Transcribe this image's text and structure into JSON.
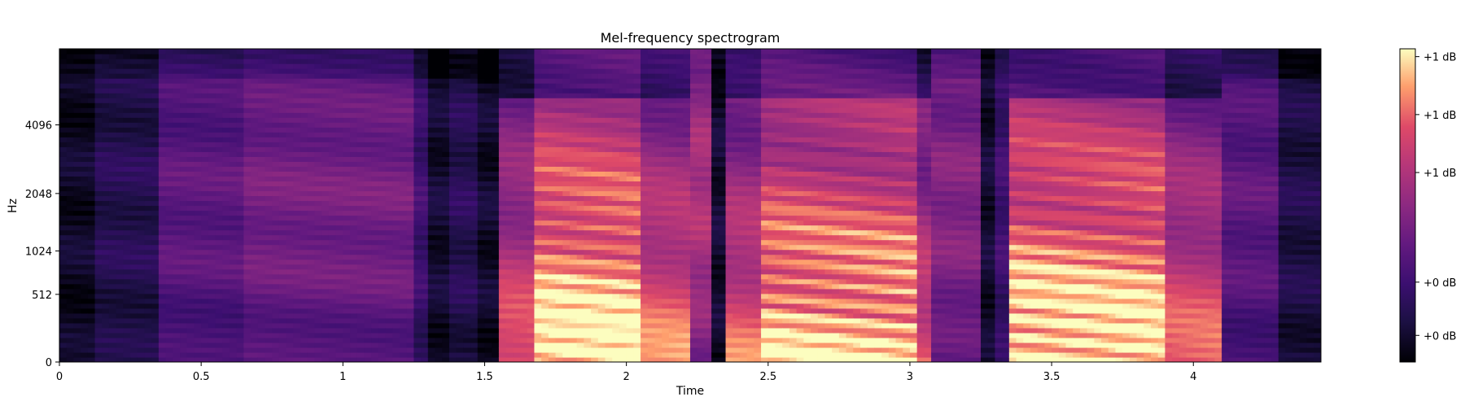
{
  "chart_data": {
    "type": "heatmap",
    "title": "Mel-frequency spectrogram",
    "xlabel": "Time",
    "ylabel": "Hz",
    "xlim": [
      0,
      4.45
    ],
    "y_scale": "mel",
    "x_ticks": [
      {
        "value": 0,
        "label": "0"
      },
      {
        "value": 0.5,
        "label": "0.5"
      },
      {
        "value": 1,
        "label": "1"
      },
      {
        "value": 1.5,
        "label": "1.5"
      },
      {
        "value": 2,
        "label": "2"
      },
      {
        "value": 2.5,
        "label": "2.5"
      },
      {
        "value": 3,
        "label": "3"
      },
      {
        "value": 3.5,
        "label": "3.5"
      },
      {
        "value": 4,
        "label": "4"
      }
    ],
    "y_ticks": [
      {
        "value": 0,
        "label": "0"
      },
      {
        "value": 512,
        "label": "512"
      },
      {
        "value": 1024,
        "label": "1024"
      },
      {
        "value": 2048,
        "label": "2048"
      },
      {
        "value": 4096,
        "label": "4096"
      }
    ],
    "colorbar": {
      "colormap": "magma",
      "ticks": [
        "+1 dB",
        "+1 dB",
        "+1 dB",
        "+0 dB",
        "+0 dB"
      ]
    },
    "segments": [
      {
        "start": 0.0,
        "end": 0.12,
        "level": 0.06
      },
      {
        "start": 0.12,
        "end": 0.35,
        "level": 0.14
      },
      {
        "start": 0.35,
        "end": 0.65,
        "level": 0.3
      },
      {
        "start": 0.65,
        "end": 1.25,
        "level": 0.36
      },
      {
        "start": 1.25,
        "end": 1.31,
        "level": 0.22
      },
      {
        "start": 1.31,
        "end": 1.38,
        "level": 0.08
      },
      {
        "start": 1.38,
        "end": 1.47,
        "level": 0.15
      },
      {
        "start": 1.47,
        "end": 1.54,
        "level": 0.07
      },
      {
        "start": 1.54,
        "end": 1.68,
        "level": 0.6
      },
      {
        "start": 1.68,
        "end": 2.05,
        "level": 0.88,
        "harmonic": true
      },
      {
        "start": 2.05,
        "end": 2.22,
        "level": 0.66
      },
      {
        "start": 2.22,
        "end": 2.29,
        "level": 0.5
      },
      {
        "start": 2.29,
        "end": 2.34,
        "level": 0.08
      },
      {
        "start": 2.34,
        "end": 2.48,
        "level": 0.62
      },
      {
        "start": 2.48,
        "end": 3.02,
        "level": 0.82,
        "harmonic": true
      },
      {
        "start": 3.02,
        "end": 3.07,
        "level": 0.58
      },
      {
        "start": 3.07,
        "end": 3.25,
        "level": 0.4
      },
      {
        "start": 3.25,
        "end": 3.31,
        "level": 0.08
      },
      {
        "start": 3.31,
        "end": 3.36,
        "level": 0.22
      },
      {
        "start": 3.36,
        "end": 3.9,
        "level": 0.86,
        "harmonic": true
      },
      {
        "start": 3.9,
        "end": 4.1,
        "level": 0.62
      },
      {
        "start": 4.1,
        "end": 4.3,
        "level": 0.3
      },
      {
        "start": 4.3,
        "end": 4.45,
        "level": 0.12
      }
    ]
  }
}
